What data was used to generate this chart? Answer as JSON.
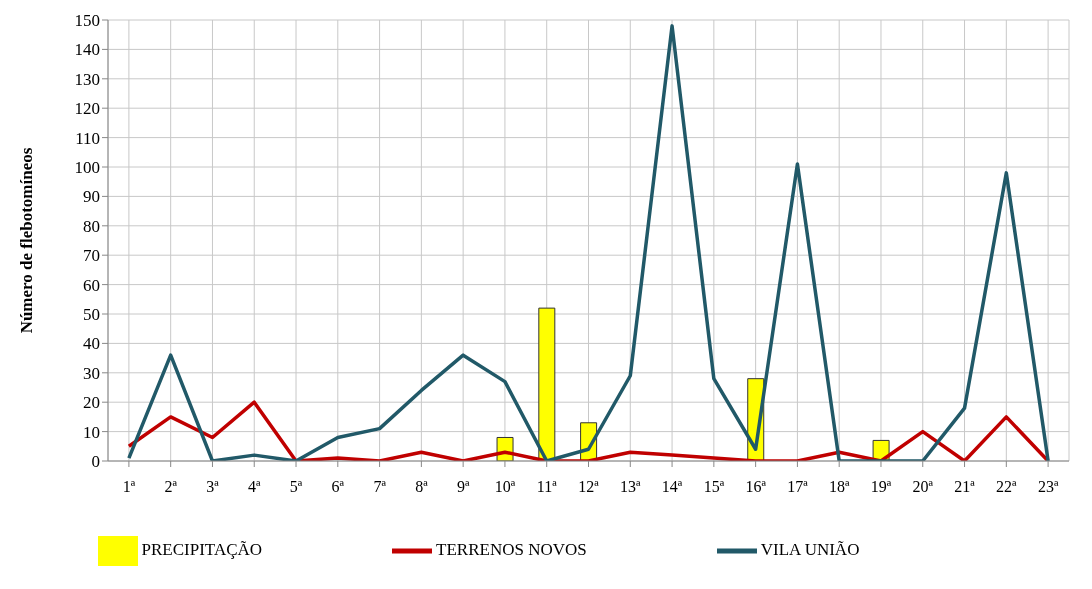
{
  "chart_data": {
    "type": "line",
    "ylabel": "Número de flebotomíneos",
    "categories": [
      "1ª",
      "2ª",
      "3ª",
      "4ª",
      "5ª",
      "6ª",
      "7ª",
      "8ª",
      "9ª",
      "10ª",
      "11ª",
      "12ª",
      "13ª",
      "14ª",
      "15ª",
      "16ª",
      "17ª",
      "18ª",
      "19ª",
      "20ª",
      "21ª",
      "22ª",
      "23ª"
    ],
    "series": [
      {
        "name": "PRECIPITAÇÃO",
        "type": "bar",
        "color": "#ffff00",
        "values": [
          null,
          null,
          null,
          null,
          null,
          null,
          null,
          null,
          null,
          8,
          52,
          13,
          null,
          null,
          null,
          28,
          null,
          null,
          7,
          null,
          null,
          null,
          null
        ]
      },
      {
        "name": "TERRENOS NOVOS",
        "color": "#c00000",
        "values": [
          5,
          15,
          8,
          20,
          0,
          1,
          0,
          3,
          0,
          3,
          0,
          0,
          3,
          2,
          1,
          0,
          0,
          3,
          0,
          10,
          0,
          15,
          0
        ]
      },
      {
        "name": "VILA UNIÃO",
        "color": "#215968",
        "values": [
          1,
          36,
          0,
          2,
          0,
          8,
          11,
          24,
          36,
          27,
          0,
          4,
          29,
          148,
          28,
          4,
          101,
          0,
          0,
          0,
          18,
          98,
          0
        ]
      }
    ],
    "ylim": [
      0,
      150
    ],
    "yticks": [
      0,
      10,
      20,
      30,
      40,
      50,
      60,
      70,
      80,
      90,
      100,
      110,
      120,
      130,
      140,
      150
    ],
    "grid": true,
    "legend": "bottom",
    "marker": "none",
    "line_style": "solid"
  }
}
